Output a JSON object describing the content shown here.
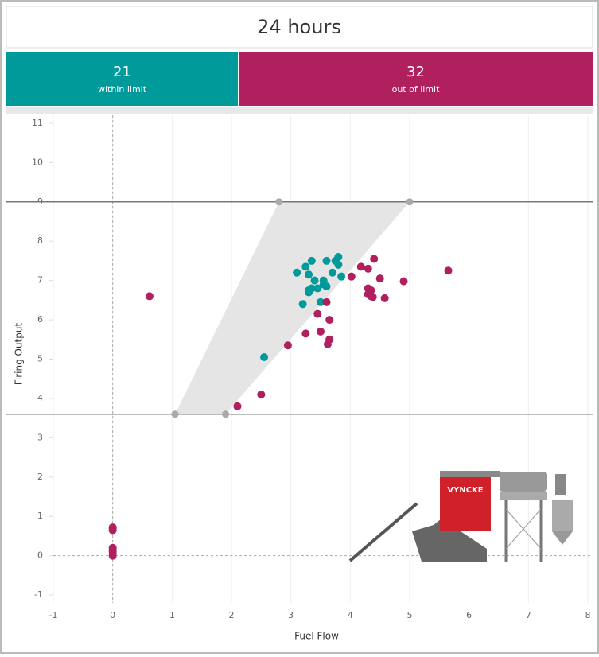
{
  "header": {
    "title": "24 hours"
  },
  "kpis": [
    {
      "value": 21,
      "label": "within limit",
      "color": "#009a9a"
    },
    {
      "value": 32,
      "label": "out of limit",
      "color": "#b0205e"
    }
  ],
  "chart_data": {
    "type": "scatter",
    "x_label": "Fuel Flow",
    "y_label": "Firing Output",
    "xlim": [
      -1,
      8
    ],
    "ylim": [
      -1.2,
      11.2
    ],
    "xticks": [
      -1,
      0,
      1,
      2,
      3,
      4,
      5,
      6,
      7,
      8
    ],
    "yticks": [
      -1,
      0,
      1,
      2,
      3,
      4,
      5,
      6,
      7,
      8,
      9,
      10,
      11
    ],
    "grid": true,
    "reference_lines": [
      9,
      3.6
    ],
    "band": {
      "x": [
        2.8,
        5.0,
        1.9,
        1.05
      ],
      "y": [
        9,
        9,
        3.6,
        3.6
      ]
    },
    "series": [
      {
        "color": "#009a9a",
        "x": [
          3.1,
          3.25,
          3.35,
          3.3,
          3.2,
          3.3,
          3.35,
          3.4,
          3.45,
          3.5,
          3.55,
          3.6,
          3.6,
          3.7,
          3.75,
          3.8,
          3.8,
          3.85,
          3.55,
          2.55,
          3.3
        ],
        "y": [
          7.2,
          7.35,
          7.5,
          7.15,
          6.4,
          6.75,
          6.8,
          7.0,
          6.8,
          6.45,
          6.9,
          6.85,
          7.5,
          7.2,
          7.5,
          7.6,
          7.4,
          7.1,
          7.0,
          5.05,
          6.7
        ]
      },
      {
        "color": "#b0205e",
        "x": [
          0.62,
          0,
          0,
          0,
          0,
          2.1,
          2.5,
          2.95,
          3.25,
          3.45,
          3.5,
          3.6,
          3.65,
          3.65,
          3.62,
          4.02,
          4.18,
          4.3,
          4.4,
          4.5,
          4.3,
          4.35,
          4.35,
          4.38,
          4.58,
          4.9,
          5.65,
          0,
          0,
          0,
          4.3,
          0
        ],
        "y": [
          6.6,
          0.7,
          0.2,
          0.05,
          0,
          3.8,
          4.1,
          5.35,
          5.65,
          6.15,
          5.7,
          6.45,
          6.0,
          5.5,
          5.38,
          7.1,
          7.35,
          7.3,
          7.55,
          7.05,
          6.8,
          6.75,
          6.6,
          6.58,
          6.55,
          6.98,
          7.25,
          0.65,
          0.1,
          0.15,
          6.65,
          0.72
        ]
      }
    ]
  },
  "illustration": {
    "label": "VYNCKE"
  }
}
